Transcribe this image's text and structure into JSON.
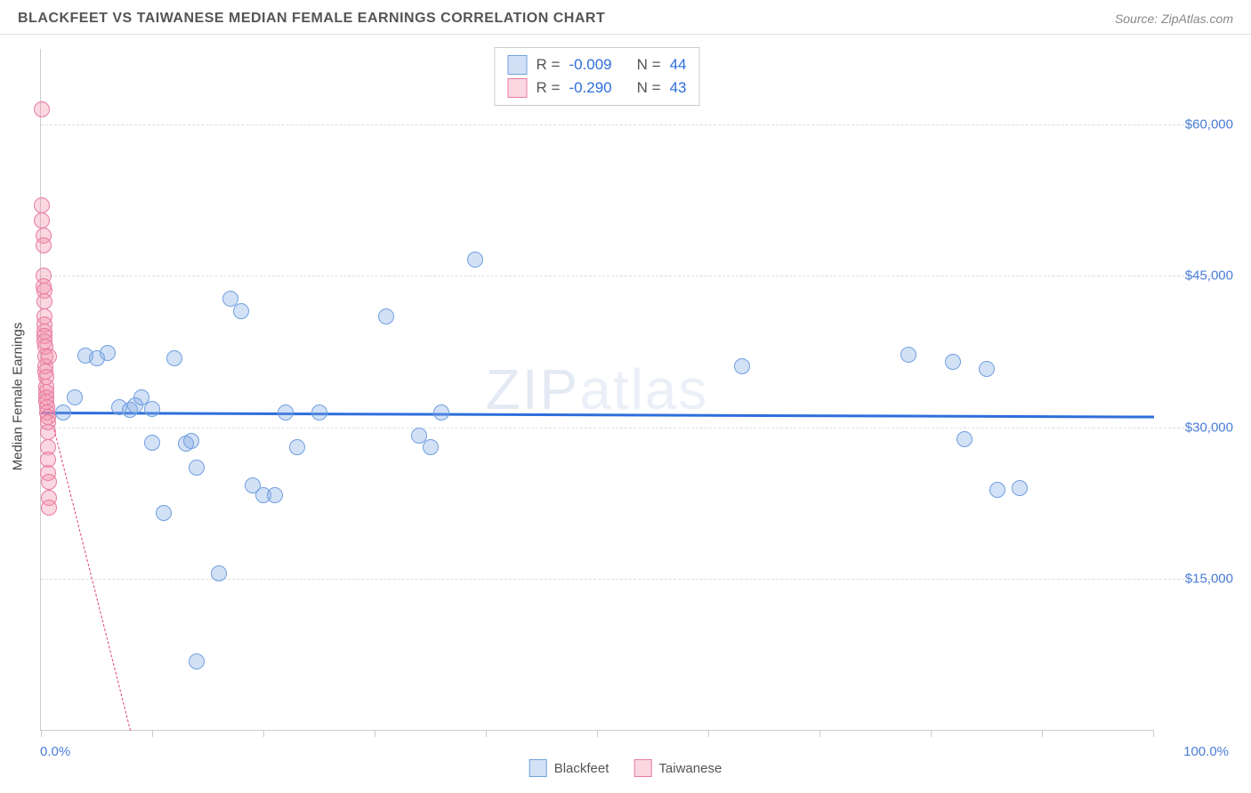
{
  "header": {
    "title": "BLACKFEET VS TAIWANESE MEDIAN FEMALE EARNINGS CORRELATION CHART",
    "source_prefix": "Source: ",
    "source_name": "ZipAtlas.com"
  },
  "chart": {
    "type": "scatter",
    "yaxis_title": "Median Female Earnings",
    "watermark": "ZIPatlas",
    "xlim": [
      0,
      100
    ],
    "ylim": [
      0,
      67500
    ],
    "x_tick_positions": [
      0,
      10,
      20,
      30,
      40,
      50,
      60,
      70,
      80,
      90,
      100
    ],
    "x_label_min": "0.0%",
    "x_label_max": "100.0%",
    "y_gridlines": [
      15000,
      30000,
      45000,
      60000
    ],
    "y_labels": [
      "$15,000",
      "$30,000",
      "$45,000",
      "$60,000"
    ],
    "grid_color": "#dddddd",
    "axis_color": "#cccccc",
    "label_color": "#4a7dd8",
    "background_color": "#ffffff",
    "marker_radius": 9,
    "series": {
      "blackfeet": {
        "label": "Blackfeet",
        "fill": "rgba(130,170,230,0.35)",
        "stroke": "#6f9fe0",
        "trend": {
          "y_at_x0": 31600,
          "y_at_x100": 31200,
          "stroke": "#2e6edb",
          "width": 3,
          "dash": "solid"
        },
        "R": "-0.009",
        "N": "44",
        "points": [
          [
            2,
            31500
          ],
          [
            3,
            33000
          ],
          [
            4,
            37100
          ],
          [
            5,
            36800
          ],
          [
            6,
            37400
          ],
          [
            7,
            32000
          ],
          [
            8,
            31700
          ],
          [
            8.5,
            32200
          ],
          [
            9,
            33000
          ],
          [
            10,
            28500
          ],
          [
            10,
            31800
          ],
          [
            11,
            21500
          ],
          [
            12,
            36800
          ],
          [
            13,
            28400
          ],
          [
            13.5,
            28600
          ],
          [
            14,
            6800
          ],
          [
            14,
            26000
          ],
          [
            16,
            15500
          ],
          [
            17,
            42700
          ],
          [
            18,
            41500
          ],
          [
            19,
            24200
          ],
          [
            20,
            23300
          ],
          [
            21,
            23300
          ],
          [
            22,
            31500
          ],
          [
            23,
            28000
          ],
          [
            25,
            31500
          ],
          [
            31,
            41000
          ],
          [
            34,
            29200
          ],
          [
            35,
            28000
          ],
          [
            36,
            31500
          ],
          [
            39,
            46600
          ],
          [
            63,
            36000
          ],
          [
            78,
            37200
          ],
          [
            82,
            36500
          ],
          [
            83,
            28800
          ],
          [
            85,
            35800
          ],
          [
            86,
            23800
          ],
          [
            88,
            24000
          ]
        ]
      },
      "taiwanese": {
        "label": "Taiwanese",
        "fill": "rgba(240,140,170,0.35)",
        "stroke": "#e87aa0",
        "trend": {
          "y_at_x0": 35000,
          "y_at_x100": -400000,
          "stroke": "#e04080",
          "width": 1.5,
          "dash": "dashed"
        },
        "R": "-0.290",
        "N": "43",
        "points": [
          [
            0.1,
            61500
          ],
          [
            0.1,
            52000
          ],
          [
            0.1,
            50500
          ],
          [
            0.2,
            49000
          ],
          [
            0.2,
            48000
          ],
          [
            0.2,
            45000
          ],
          [
            0.2,
            44000
          ],
          [
            0.3,
            43500
          ],
          [
            0.3,
            42500
          ],
          [
            0.3,
            41000
          ],
          [
            0.3,
            40200
          ],
          [
            0.3,
            39500
          ],
          [
            0.35,
            39000
          ],
          [
            0.35,
            38500
          ],
          [
            0.4,
            38000
          ],
          [
            0.4,
            37000
          ],
          [
            0.4,
            36000
          ],
          [
            0.4,
            35500
          ],
          [
            0.45,
            35000
          ],
          [
            0.5,
            34000
          ],
          [
            0.5,
            33500
          ],
          [
            0.5,
            33000
          ],
          [
            0.5,
            32500
          ],
          [
            0.55,
            32000
          ],
          [
            0.55,
            31500
          ],
          [
            0.6,
            31000
          ],
          [
            0.6,
            30500
          ],
          [
            0.6,
            29500
          ],
          [
            0.6,
            28000
          ],
          [
            0.65,
            26800
          ],
          [
            0.65,
            25500
          ],
          [
            0.7,
            24600
          ],
          [
            0.7,
            23000
          ],
          [
            0.7,
            22000
          ],
          [
            0.7,
            37000
          ]
        ]
      }
    }
  },
  "legend_top": {
    "rows": [
      {
        "series": "blackfeet",
        "R_label": "R =",
        "N_label": "N ="
      },
      {
        "series": "taiwanese",
        "R_label": "R =",
        "N_label": "N ="
      }
    ]
  }
}
